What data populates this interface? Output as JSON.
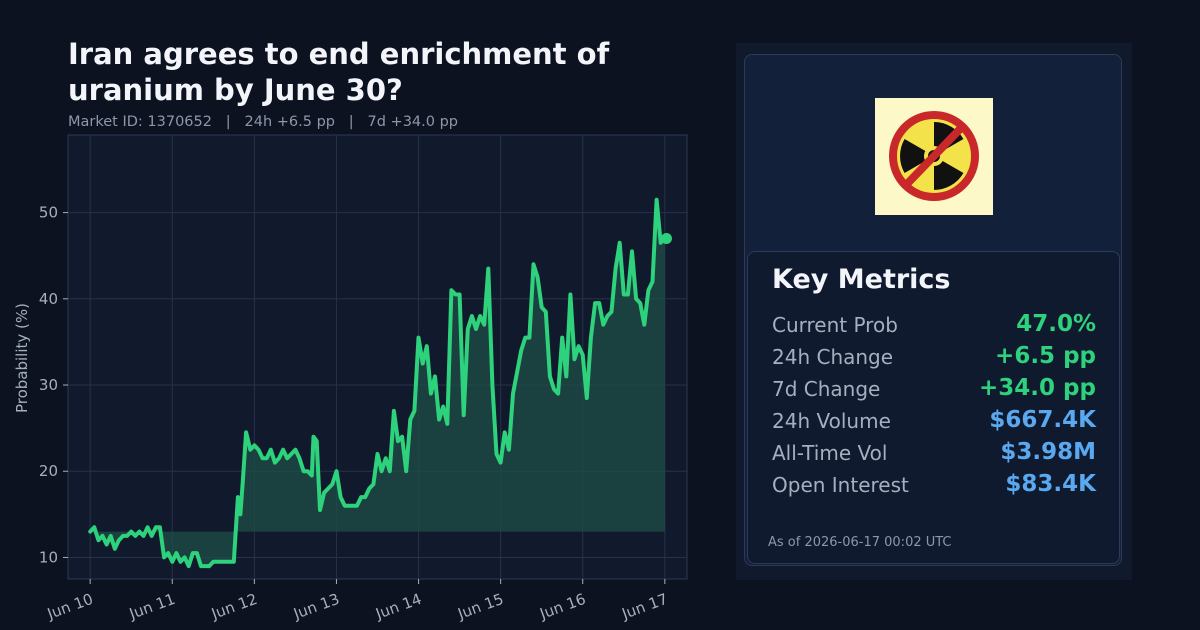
{
  "header": {
    "title": "Iran agrees to end enrichment of uranium by June 30?",
    "subtitle": "Market ID: 1370652   |   24h +6.5 pp   |   7d +34.0 pp"
  },
  "metrics": {
    "heading": "Key Metrics",
    "rows": [
      {
        "label": "Current Prob",
        "value": "47.0%",
        "color": "green"
      },
      {
        "label": "24h Change",
        "value": "+6.5 pp",
        "color": "green"
      },
      {
        "label": "7d Change",
        "value": "+34.0 pp",
        "color": "green"
      },
      {
        "label": "24h Volume",
        "value": "$667.4K",
        "color": "blue"
      },
      {
        "label": "All-Time Vol",
        "value": "$3.98M",
        "color": "blue"
      },
      {
        "label": "Open Interest",
        "value": "$83.4K",
        "color": "blue"
      }
    ],
    "as_of": "As of 2026-06-17 00:02 UTC"
  },
  "thumbnail_icon": "no-nuclear-icon",
  "colors": {
    "line": "#2ed27c",
    "fill": "#1d4f47",
    "background": "#0c1220",
    "plot_bg": "#111a2c",
    "grid": "#26324a",
    "axis_text": "#a6afc0",
    "value_green": "#2ed27c",
    "value_blue": "#5aa9f0"
  },
  "chart_data": {
    "type": "line",
    "ylabel": "Probability (%)",
    "xlabel": "",
    "xlim": [
      -0.27,
      7.27
    ],
    "ylim": [
      7.5,
      59
    ],
    "yticks": [
      10,
      20,
      30,
      40,
      50
    ],
    "xticks": [
      {
        "x": 0,
        "label": "Jun 10"
      },
      {
        "x": 1,
        "label": "Jun 11"
      },
      {
        "x": 2,
        "label": "Jun 12"
      },
      {
        "x": 3,
        "label": "Jun 13"
      },
      {
        "x": 4,
        "label": "Jun 14"
      },
      {
        "x": 5,
        "label": "Jun 15"
      },
      {
        "x": 6,
        "label": "Jun 16"
      },
      {
        "x": 7,
        "label": "Jun 17"
      }
    ],
    "x_unit": "days since Jun 10",
    "baseline": 13,
    "grid": true,
    "final_point": {
      "x": 7.02,
      "y": 47.0
    },
    "series": [
      {
        "name": "Probability",
        "points": [
          [
            0.0,
            13
          ],
          [
            0.05,
            13.5
          ],
          [
            0.1,
            12
          ],
          [
            0.15,
            12.5
          ],
          [
            0.2,
            11.5
          ],
          [
            0.25,
            12.5
          ],
          [
            0.3,
            11
          ],
          [
            0.35,
            12
          ],
          [
            0.4,
            12.5
          ],
          [
            0.45,
            12.5
          ],
          [
            0.5,
            13
          ],
          [
            0.55,
            12.5
          ],
          [
            0.6,
            13
          ],
          [
            0.65,
            12.5
          ],
          [
            0.7,
            13.5
          ],
          [
            0.75,
            12.5
          ],
          [
            0.8,
            13.5
          ],
          [
            0.85,
            13.5
          ],
          [
            0.9,
            10
          ],
          [
            0.95,
            10.5
          ],
          [
            1.0,
            9.5
          ],
          [
            1.05,
            10.5
          ],
          [
            1.1,
            9.5
          ],
          [
            1.15,
            10
          ],
          [
            1.2,
            9
          ],
          [
            1.25,
            10.5
          ],
          [
            1.3,
            10.5
          ],
          [
            1.35,
            9
          ],
          [
            1.4,
            9
          ],
          [
            1.45,
            9
          ],
          [
            1.5,
            9.5
          ],
          [
            1.6,
            9.5
          ],
          [
            1.7,
            9.5
          ],
          [
            1.75,
            9.5
          ],
          [
            1.8,
            17
          ],
          [
            1.83,
            15
          ],
          [
            1.86,
            19
          ],
          [
            1.9,
            24.5
          ],
          [
            1.95,
            22.5
          ],
          [
            2.0,
            23
          ],
          [
            2.05,
            22.5
          ],
          [
            2.1,
            21.5
          ],
          [
            2.15,
            21.5
          ],
          [
            2.2,
            22.5
          ],
          [
            2.25,
            21
          ],
          [
            2.3,
            21.5
          ],
          [
            2.35,
            22.5
          ],
          [
            2.4,
            21.5
          ],
          [
            2.45,
            22
          ],
          [
            2.5,
            22.5
          ],
          [
            2.55,
            21.5
          ],
          [
            2.6,
            20
          ],
          [
            2.65,
            20
          ],
          [
            2.7,
            19.5
          ],
          [
            2.72,
            24
          ],
          [
            2.76,
            23.5
          ],
          [
            2.8,
            15.5
          ],
          [
            2.85,
            17.5
          ],
          [
            2.9,
            18
          ],
          [
            2.95,
            18.5
          ],
          [
            3.0,
            20
          ],
          [
            3.05,
            17
          ],
          [
            3.1,
            16
          ],
          [
            3.15,
            16
          ],
          [
            3.2,
            16
          ],
          [
            3.25,
            16
          ],
          [
            3.3,
            17
          ],
          [
            3.35,
            17
          ],
          [
            3.4,
            18
          ],
          [
            3.45,
            18.5
          ],
          [
            3.5,
            22
          ],
          [
            3.55,
            20
          ],
          [
            3.6,
            21.5
          ],
          [
            3.65,
            20
          ],
          [
            3.7,
            27
          ],
          [
            3.75,
            23.5
          ],
          [
            3.8,
            24
          ],
          [
            3.85,
            20
          ],
          [
            3.9,
            26
          ],
          [
            3.95,
            27
          ],
          [
            4.0,
            35.5
          ],
          [
            4.05,
            32.5
          ],
          [
            4.1,
            34.5
          ],
          [
            4.15,
            29
          ],
          [
            4.2,
            31
          ],
          [
            4.25,
            26
          ],
          [
            4.3,
            27.5
          ],
          [
            4.35,
            25.5
          ],
          [
            4.4,
            41
          ],
          [
            4.45,
            40.5
          ],
          [
            4.5,
            40.5
          ],
          [
            4.55,
            26.5
          ],
          [
            4.6,
            36.5
          ],
          [
            4.65,
            38
          ],
          [
            4.7,
            36.5
          ],
          [
            4.75,
            38
          ],
          [
            4.8,
            37
          ],
          [
            4.85,
            43.5
          ],
          [
            4.9,
            30
          ],
          [
            4.95,
            22
          ],
          [
            5.0,
            21
          ],
          [
            5.05,
            24.5
          ],
          [
            5.1,
            22.5
          ],
          [
            5.15,
            29
          ],
          [
            5.2,
            31.5
          ],
          [
            5.25,
            34
          ],
          [
            5.3,
            35.5
          ],
          [
            5.35,
            35.5
          ],
          [
            5.4,
            44
          ],
          [
            5.45,
            42.5
          ],
          [
            5.5,
            39
          ],
          [
            5.55,
            38.5
          ],
          [
            5.6,
            31
          ],
          [
            5.65,
            29.5
          ],
          [
            5.7,
            29
          ],
          [
            5.75,
            35.5
          ],
          [
            5.8,
            31
          ],
          [
            5.85,
            40.5
          ],
          [
            5.9,
            33
          ],
          [
            5.95,
            34.5
          ],
          [
            6.0,
            33.5
          ],
          [
            6.05,
            28.5
          ],
          [
            6.1,
            35.5
          ],
          [
            6.15,
            39.5
          ],
          [
            6.2,
            39.5
          ],
          [
            6.25,
            37
          ],
          [
            6.3,
            38
          ],
          [
            6.35,
            38.5
          ],
          [
            6.4,
            43.5
          ],
          [
            6.45,
            46.5
          ],
          [
            6.5,
            40.5
          ],
          [
            6.55,
            40.5
          ],
          [
            6.6,
            45.5
          ],
          [
            6.65,
            40
          ],
          [
            6.7,
            39.5
          ],
          [
            6.75,
            37
          ],
          [
            6.8,
            41
          ],
          [
            6.85,
            42
          ],
          [
            6.9,
            51.5
          ],
          [
            6.95,
            46.5
          ],
          [
            7.0,
            47
          ]
        ]
      }
    ]
  }
}
